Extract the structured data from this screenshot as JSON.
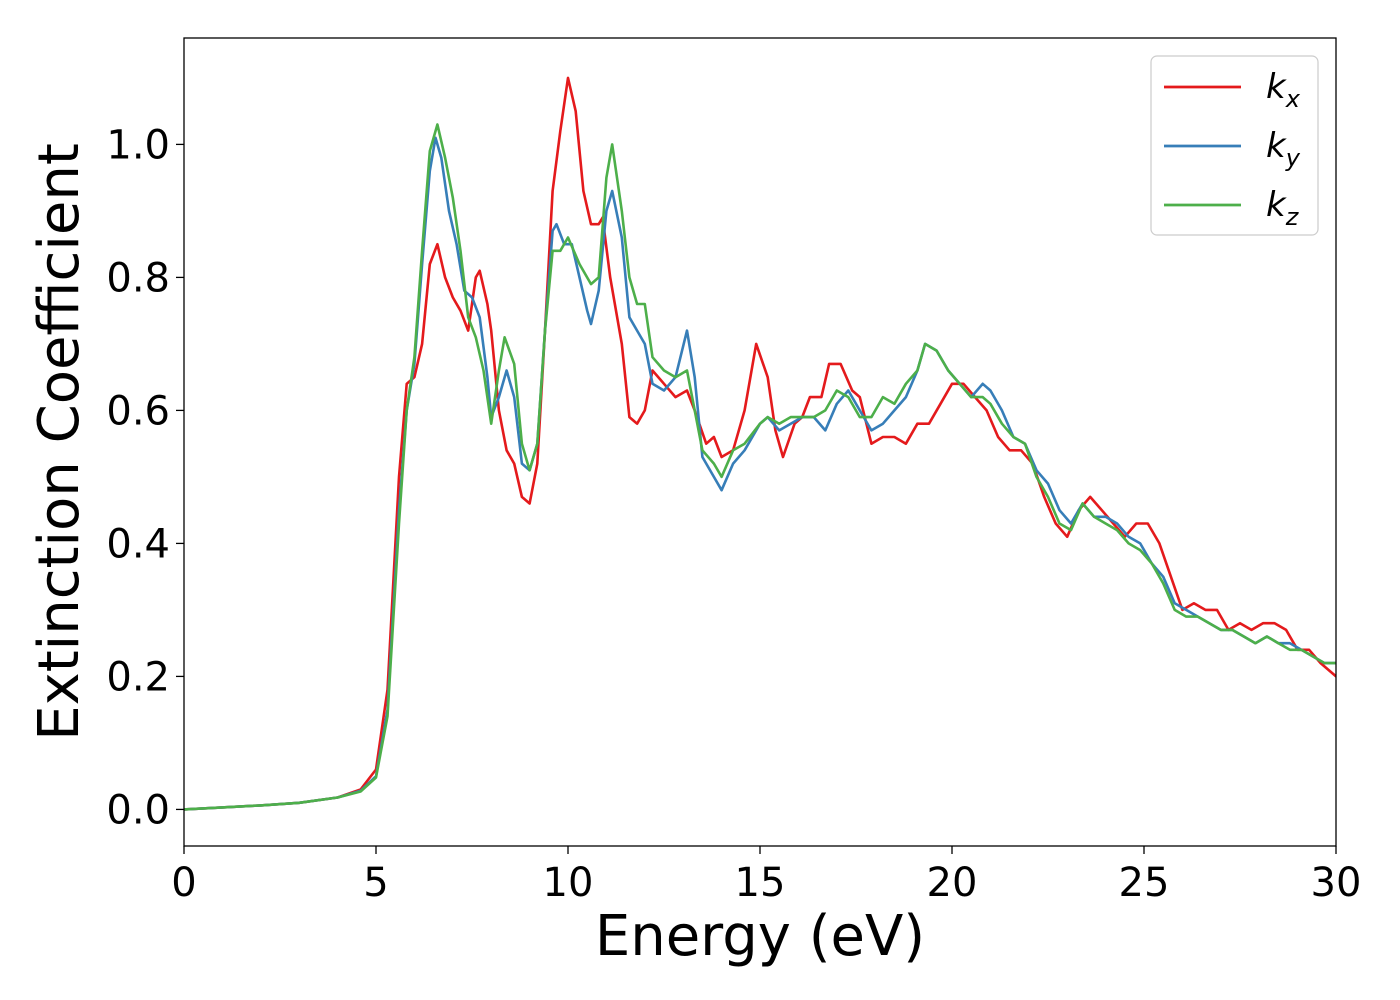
{
  "chart_data": {
    "type": "line",
    "xlabel": "Energy (eV)",
    "ylabel": "Extinction Coefficient",
    "xlim": [
      0,
      30
    ],
    "ylim": [
      -0.055,
      1.16
    ],
    "xticks": [
      0,
      5,
      10,
      15,
      20,
      25,
      30
    ],
    "xtick_labels": [
      "0",
      "5",
      "10",
      "15",
      "20",
      "25",
      "30"
    ],
    "yticks": [
      0.0,
      0.2,
      0.4,
      0.6,
      0.8,
      1.0
    ],
    "ytick_labels": [
      "0.0",
      "0.2",
      "0.4",
      "0.6",
      "0.8",
      "1.0"
    ],
    "grid": false,
    "legend_position": "top-right",
    "series": [
      {
        "name": "k",
        "subscript": "x",
        "color": "#e41a1c",
        "points": [
          [
            0,
            0
          ],
          [
            1,
            0.003
          ],
          [
            2,
            0.006
          ],
          [
            3,
            0.01
          ],
          [
            4,
            0.018
          ],
          [
            4.6,
            0.03
          ],
          [
            5.0,
            0.06
          ],
          [
            5.3,
            0.18
          ],
          [
            5.6,
            0.5
          ],
          [
            5.8,
            0.64
          ],
          [
            6.0,
            0.65
          ],
          [
            6.2,
            0.7
          ],
          [
            6.4,
            0.82
          ],
          [
            6.6,
            0.85
          ],
          [
            6.8,
            0.8
          ],
          [
            7.0,
            0.77
          ],
          [
            7.2,
            0.75
          ],
          [
            7.4,
            0.72
          ],
          [
            7.6,
            0.8
          ],
          [
            7.7,
            0.81
          ],
          [
            7.9,
            0.76
          ],
          [
            8.0,
            0.72
          ],
          [
            8.2,
            0.6
          ],
          [
            8.4,
            0.54
          ],
          [
            8.6,
            0.52
          ],
          [
            8.8,
            0.47
          ],
          [
            9.0,
            0.46
          ],
          [
            9.2,
            0.52
          ],
          [
            9.4,
            0.72
          ],
          [
            9.6,
            0.93
          ],
          [
            9.8,
            1.02
          ],
          [
            10.0,
            1.1
          ],
          [
            10.2,
            1.05
          ],
          [
            10.4,
            0.93
          ],
          [
            10.6,
            0.88
          ],
          [
            10.8,
            0.88
          ],
          [
            10.9,
            0.89
          ],
          [
            11.1,
            0.8
          ],
          [
            11.4,
            0.7
          ],
          [
            11.6,
            0.59
          ],
          [
            11.8,
            0.58
          ],
          [
            12.0,
            0.6
          ],
          [
            12.2,
            0.66
          ],
          [
            12.5,
            0.64
          ],
          [
            12.8,
            0.62
          ],
          [
            13.1,
            0.63
          ],
          [
            13.3,
            0.6
          ],
          [
            13.6,
            0.55
          ],
          [
            13.8,
            0.56
          ],
          [
            14.0,
            0.53
          ],
          [
            14.3,
            0.54
          ],
          [
            14.6,
            0.6
          ],
          [
            14.9,
            0.7
          ],
          [
            15.2,
            0.65
          ],
          [
            15.4,
            0.57
          ],
          [
            15.6,
            0.53
          ],
          [
            15.9,
            0.58
          ],
          [
            16.1,
            0.59
          ],
          [
            16.3,
            0.62
          ],
          [
            16.6,
            0.62
          ],
          [
            16.8,
            0.67
          ],
          [
            17.1,
            0.67
          ],
          [
            17.4,
            0.63
          ],
          [
            17.6,
            0.62
          ],
          [
            17.9,
            0.55
          ],
          [
            18.2,
            0.56
          ],
          [
            18.5,
            0.56
          ],
          [
            18.8,
            0.55
          ],
          [
            19.1,
            0.58
          ],
          [
            19.4,
            0.58
          ],
          [
            19.7,
            0.61
          ],
          [
            20.0,
            0.64
          ],
          [
            20.3,
            0.64
          ],
          [
            20.6,
            0.62
          ],
          [
            20.9,
            0.6
          ],
          [
            21.2,
            0.56
          ],
          [
            21.5,
            0.54
          ],
          [
            21.8,
            0.54
          ],
          [
            22.1,
            0.52
          ],
          [
            22.4,
            0.47
          ],
          [
            22.7,
            0.43
          ],
          [
            23.0,
            0.41
          ],
          [
            23.3,
            0.45
          ],
          [
            23.6,
            0.47
          ],
          [
            23.9,
            0.45
          ],
          [
            24.2,
            0.43
          ],
          [
            24.5,
            0.41
          ],
          [
            24.8,
            0.43
          ],
          [
            25.1,
            0.43
          ],
          [
            25.4,
            0.4
          ],
          [
            25.7,
            0.35
          ],
          [
            26.0,
            0.3
          ],
          [
            26.3,
            0.31
          ],
          [
            26.6,
            0.3
          ],
          [
            26.9,
            0.3
          ],
          [
            27.2,
            0.27
          ],
          [
            27.5,
            0.28
          ],
          [
            27.8,
            0.27
          ],
          [
            28.1,
            0.28
          ],
          [
            28.4,
            0.28
          ],
          [
            28.7,
            0.27
          ],
          [
            29.0,
            0.24
          ],
          [
            29.3,
            0.24
          ],
          [
            29.6,
            0.22
          ],
          [
            30.0,
            0.2
          ]
        ]
      },
      {
        "name": "k",
        "subscript": "y",
        "color": "#377eb8",
        "points": [
          [
            0,
            0
          ],
          [
            1,
            0.003
          ],
          [
            2,
            0.006
          ],
          [
            3,
            0.01
          ],
          [
            4,
            0.018
          ],
          [
            4.6,
            0.028
          ],
          [
            5.0,
            0.05
          ],
          [
            5.3,
            0.15
          ],
          [
            5.6,
            0.45
          ],
          [
            5.8,
            0.6
          ],
          [
            6.0,
            0.67
          ],
          [
            6.2,
            0.82
          ],
          [
            6.4,
            0.96
          ],
          [
            6.55,
            1.01
          ],
          [
            6.7,
            0.98
          ],
          [
            6.9,
            0.9
          ],
          [
            7.1,
            0.85
          ],
          [
            7.3,
            0.78
          ],
          [
            7.5,
            0.77
          ],
          [
            7.7,
            0.74
          ],
          [
            7.9,
            0.65
          ],
          [
            8.0,
            0.59
          ],
          [
            8.2,
            0.62
          ],
          [
            8.4,
            0.66
          ],
          [
            8.6,
            0.62
          ],
          [
            8.8,
            0.52
          ],
          [
            9.0,
            0.51
          ],
          [
            9.2,
            0.55
          ],
          [
            9.4,
            0.72
          ],
          [
            9.6,
            0.87
          ],
          [
            9.7,
            0.88
          ],
          [
            9.9,
            0.85
          ],
          [
            10.1,
            0.85
          ],
          [
            10.3,
            0.8
          ],
          [
            10.5,
            0.75
          ],
          [
            10.6,
            0.73
          ],
          [
            10.8,
            0.78
          ],
          [
            11.0,
            0.9
          ],
          [
            11.15,
            0.93
          ],
          [
            11.4,
            0.86
          ],
          [
            11.6,
            0.74
          ],
          [
            11.8,
            0.72
          ],
          [
            12.0,
            0.7
          ],
          [
            12.2,
            0.64
          ],
          [
            12.5,
            0.63
          ],
          [
            12.8,
            0.65
          ],
          [
            13.1,
            0.72
          ],
          [
            13.3,
            0.65
          ],
          [
            13.5,
            0.53
          ],
          [
            13.8,
            0.5
          ],
          [
            14.0,
            0.48
          ],
          [
            14.3,
            0.52
          ],
          [
            14.6,
            0.54
          ],
          [
            15.0,
            0.58
          ],
          [
            15.2,
            0.59
          ],
          [
            15.5,
            0.57
          ],
          [
            15.8,
            0.58
          ],
          [
            16.1,
            0.59
          ],
          [
            16.4,
            0.59
          ],
          [
            16.7,
            0.57
          ],
          [
            17.0,
            0.61
          ],
          [
            17.3,
            0.63
          ],
          [
            17.6,
            0.6
          ],
          [
            17.9,
            0.57
          ],
          [
            18.2,
            0.58
          ],
          [
            18.5,
            0.6
          ],
          [
            18.8,
            0.62
          ],
          [
            19.1,
            0.66
          ],
          [
            19.3,
            0.7
          ],
          [
            19.6,
            0.69
          ],
          [
            19.9,
            0.66
          ],
          [
            20.2,
            0.64
          ],
          [
            20.5,
            0.62
          ],
          [
            20.8,
            0.64
          ],
          [
            21.0,
            0.63
          ],
          [
            21.3,
            0.6
          ],
          [
            21.6,
            0.56
          ],
          [
            21.9,
            0.55
          ],
          [
            22.2,
            0.51
          ],
          [
            22.5,
            0.49
          ],
          [
            22.8,
            0.45
          ],
          [
            23.1,
            0.43
          ],
          [
            23.4,
            0.46
          ],
          [
            23.7,
            0.44
          ],
          [
            24.0,
            0.44
          ],
          [
            24.3,
            0.43
          ],
          [
            24.6,
            0.41
          ],
          [
            24.9,
            0.4
          ],
          [
            25.2,
            0.37
          ],
          [
            25.5,
            0.35
          ],
          [
            25.8,
            0.31
          ],
          [
            26.1,
            0.3
          ],
          [
            26.4,
            0.29
          ],
          [
            26.7,
            0.28
          ],
          [
            27.0,
            0.27
          ],
          [
            27.3,
            0.27
          ],
          [
            27.6,
            0.26
          ],
          [
            27.9,
            0.25
          ],
          [
            28.2,
            0.26
          ],
          [
            28.5,
            0.25
          ],
          [
            28.8,
            0.25
          ],
          [
            29.1,
            0.24
          ],
          [
            29.4,
            0.23
          ],
          [
            29.7,
            0.22
          ],
          [
            30.0,
            0.22
          ]
        ]
      },
      {
        "name": "k",
        "subscript": "z",
        "color": "#4daf4a",
        "points": [
          [
            0,
            0
          ],
          [
            1,
            0.003
          ],
          [
            2,
            0.006
          ],
          [
            3,
            0.01
          ],
          [
            4,
            0.018
          ],
          [
            4.6,
            0.027
          ],
          [
            5.0,
            0.048
          ],
          [
            5.3,
            0.14
          ],
          [
            5.6,
            0.43
          ],
          [
            5.8,
            0.6
          ],
          [
            6.0,
            0.68
          ],
          [
            6.2,
            0.84
          ],
          [
            6.4,
            0.99
          ],
          [
            6.6,
            1.03
          ],
          [
            6.8,
            0.98
          ],
          [
            7.0,
            0.92
          ],
          [
            7.2,
            0.84
          ],
          [
            7.4,
            0.74
          ],
          [
            7.6,
            0.71
          ],
          [
            7.8,
            0.66
          ],
          [
            8.0,
            0.58
          ],
          [
            8.2,
            0.66
          ],
          [
            8.35,
            0.71
          ],
          [
            8.6,
            0.67
          ],
          [
            8.8,
            0.55
          ],
          [
            9.0,
            0.51
          ],
          [
            9.2,
            0.55
          ],
          [
            9.4,
            0.72
          ],
          [
            9.6,
            0.84
          ],
          [
            9.8,
            0.84
          ],
          [
            10.0,
            0.86
          ],
          [
            10.3,
            0.82
          ],
          [
            10.6,
            0.79
          ],
          [
            10.8,
            0.8
          ],
          [
            11.0,
            0.95
          ],
          [
            11.15,
            1.0
          ],
          [
            11.4,
            0.9
          ],
          [
            11.6,
            0.8
          ],
          [
            11.8,
            0.76
          ],
          [
            12.0,
            0.76
          ],
          [
            12.2,
            0.68
          ],
          [
            12.5,
            0.66
          ],
          [
            12.8,
            0.65
          ],
          [
            13.1,
            0.66
          ],
          [
            13.3,
            0.6
          ],
          [
            13.5,
            0.54
          ],
          [
            13.8,
            0.52
          ],
          [
            14.0,
            0.5
          ],
          [
            14.3,
            0.54
          ],
          [
            14.6,
            0.55
          ],
          [
            15.0,
            0.58
          ],
          [
            15.2,
            0.59
          ],
          [
            15.5,
            0.58
          ],
          [
            15.8,
            0.59
          ],
          [
            16.1,
            0.59
          ],
          [
            16.4,
            0.59
          ],
          [
            16.7,
            0.6
          ],
          [
            17.0,
            0.63
          ],
          [
            17.3,
            0.62
          ],
          [
            17.6,
            0.59
          ],
          [
            17.9,
            0.59
          ],
          [
            18.2,
            0.62
          ],
          [
            18.5,
            0.61
          ],
          [
            18.8,
            0.64
          ],
          [
            19.1,
            0.66
          ],
          [
            19.3,
            0.7
          ],
          [
            19.6,
            0.69
          ],
          [
            19.9,
            0.66
          ],
          [
            20.2,
            0.64
          ],
          [
            20.5,
            0.62
          ],
          [
            20.8,
            0.62
          ],
          [
            21.0,
            0.61
          ],
          [
            21.3,
            0.58
          ],
          [
            21.6,
            0.56
          ],
          [
            21.9,
            0.55
          ],
          [
            22.2,
            0.5
          ],
          [
            22.5,
            0.47
          ],
          [
            22.8,
            0.43
          ],
          [
            23.1,
            0.42
          ],
          [
            23.4,
            0.46
          ],
          [
            23.7,
            0.44
          ],
          [
            24.0,
            0.43
          ],
          [
            24.3,
            0.42
          ],
          [
            24.6,
            0.4
          ],
          [
            24.9,
            0.39
          ],
          [
            25.2,
            0.37
          ],
          [
            25.5,
            0.34
          ],
          [
            25.8,
            0.3
          ],
          [
            26.1,
            0.29
          ],
          [
            26.4,
            0.29
          ],
          [
            26.7,
            0.28
          ],
          [
            27.0,
            0.27
          ],
          [
            27.3,
            0.27
          ],
          [
            27.6,
            0.26
          ],
          [
            27.9,
            0.25
          ],
          [
            28.2,
            0.26
          ],
          [
            28.5,
            0.25
          ],
          [
            28.8,
            0.24
          ],
          [
            29.1,
            0.24
          ],
          [
            29.4,
            0.23
          ],
          [
            29.7,
            0.22
          ],
          [
            30.0,
            0.22
          ]
        ]
      }
    ]
  }
}
